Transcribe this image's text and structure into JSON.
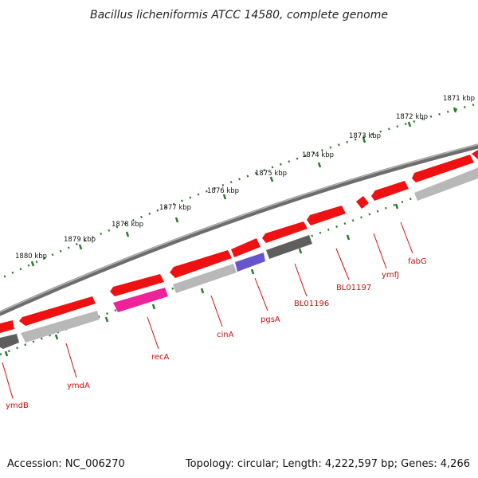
{
  "title": "Bacillus licheniformis ATCC 14580, complete genome",
  "footer": {
    "accession": "Accession: NC_006270",
    "topology": "Topology: circular; Length: 4,222,597 bp; Genes: 4,266"
  },
  "scale_labels": [
    "1871 kbp",
    "1872 kbp",
    "1873 kbp",
    "1874 kbp",
    "1875 kbp",
    "1876 kbp",
    "1877 kbp",
    "1878 kbp",
    "1879 kbp",
    "1880 kbp"
  ],
  "gene_labels": [
    "ymdB",
    "ymdA",
    "recA",
    "cinA",
    "pgsA",
    "BL01196",
    "BL01197",
    "ymfJ",
    "fabG"
  ],
  "colors": {
    "backbone": "#8a8a8a",
    "forward_gene": "#ee1111",
    "reverse_gene_light": "#b8b8b8",
    "reverse_gene_dark": "#5e5e5e",
    "reverse_gene_pink": "#ee2299",
    "reverse_gene_blue": "#6655cc",
    "scale_ticks": "#2a7a2a",
    "label_color": "#cc1111"
  }
}
